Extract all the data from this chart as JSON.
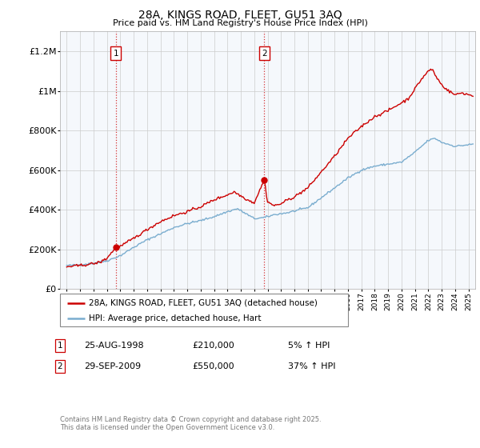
{
  "title": "28A, KINGS ROAD, FLEET, GU51 3AQ",
  "subtitle": "Price paid vs. HM Land Registry's House Price Index (HPI)",
  "legend_label_red": "28A, KINGS ROAD, FLEET, GU51 3AQ (detached house)",
  "legend_label_blue": "HPI: Average price, detached house, Hart",
  "annotation1_date": "25-AUG-1998",
  "annotation1_price": 210000,
  "annotation1_price_str": "£210,000",
  "annotation1_pct": "5% ↑ HPI",
  "annotation1_year": 1998.667,
  "annotation2_date": "29-SEP-2009",
  "annotation2_price": 550000,
  "annotation2_price_str": "£550,000",
  "annotation2_pct": "37% ↑ HPI",
  "annotation2_year": 2009.75,
  "footer": "Contains HM Land Registry data © Crown copyright and database right 2025.\nThis data is licensed under the Open Government Licence v3.0.",
  "ylim": [
    0,
    1300000
  ],
  "yticks": [
    0,
    200000,
    400000,
    600000,
    800000,
    1000000,
    1200000
  ],
  "ytick_labels": [
    "£0",
    "£200K",
    "£400K",
    "£600K",
    "£800K",
    "£1M",
    "£1.2M"
  ],
  "xmin": 1994.5,
  "xmax": 2025.5,
  "red_color": "#cc0000",
  "blue_color": "#7aadcf",
  "grid_color": "#cccccc",
  "bg_color": "#ffffff",
  "chart_bg": "#f0f4f8"
}
